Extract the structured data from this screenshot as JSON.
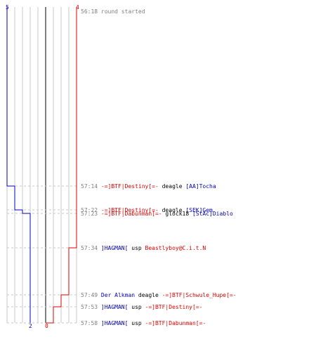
{
  "chart_data": {
    "type": "line",
    "colors": {
      "blue_team": "#0000c0",
      "red_team": "#e00000",
      "time": "#808080",
      "weapon": "#000000"
    },
    "y_axis": {
      "top_label_left": "5",
      "top_label_right": "4",
      "bottom_label_left": "2",
      "bottom_label_right": "0"
    },
    "series": [
      {
        "team": "blue",
        "steps": [
          {
            "t": "56:18",
            "v": 5
          },
          {
            "t": "57:14",
            "v": 4
          },
          {
            "t": "57:22",
            "v": 3
          },
          {
            "t": "57:23",
            "v": 2
          },
          {
            "t": "57:58",
            "v": 2
          }
        ]
      },
      {
        "team": "red",
        "steps": [
          {
            "t": "56:18",
            "v": 4
          },
          {
            "t": "57:34",
            "v": 3
          },
          {
            "t": "57:49",
            "v": 2
          },
          {
            "t": "57:53",
            "v": 1
          },
          {
            "t": "57:58",
            "v": 0
          }
        ]
      }
    ],
    "events": [
      {
        "time": "56:18",
        "type": "text",
        "text": "round started"
      },
      {
        "time": "57:14",
        "killer": "-=]BTF|Destiny[=-",
        "killer_team": "red",
        "weapon": "deagle",
        "victim": "[AA]Tocha",
        "victim_team": "blue"
      },
      {
        "time": "57:22",
        "killer": "-=]BTF|Destiny[=-",
        "killer_team": "red",
        "weapon": "deagle",
        "victim": "[SEK]Gem",
        "victim_team": "blue"
      },
      {
        "time": "57:23",
        "killer": "-=]BTF|Dabunman[=-",
        "killer_team": "red",
        "weapon": "glock18",
        "victim": "[StAc]Diablo",
        "victim_team": "blue"
      },
      {
        "time": "57:34",
        "killer": "]HAGMAN[",
        "killer_team": "blue",
        "weapon": "usp",
        "victim": "Beastlyboy@C.i.t.N",
        "victim_team": "red"
      },
      {
        "time": "57:49",
        "killer": "Der Alkman",
        "killer_team": "blue",
        "weapon": "deagle",
        "victim": "-=]BTF|Schwule_Hupe[=-",
        "victim_team": "red"
      },
      {
        "time": "57:53",
        "killer": "]HAGMAN[",
        "killer_team": "blue",
        "weapon": "usp",
        "victim": "-=]BTF|Destiny[=-",
        "victim_team": "red"
      },
      {
        "time": "57:58",
        "killer": "]HAGMAN[",
        "killer_team": "blue",
        "weapon": "usp",
        "victim": "-=]BTF|Dabunman[=-",
        "victim_team": "red"
      }
    ]
  }
}
